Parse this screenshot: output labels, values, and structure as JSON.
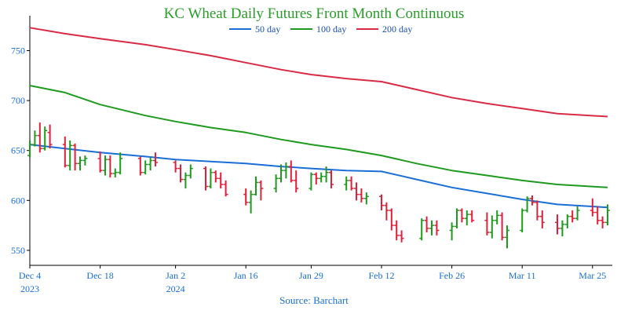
{
  "chart_data": {
    "type": "line",
    "title": "KC Wheat Daily Futures Front Month Continuous",
    "source": "Source: Barchart",
    "ylim": [
      535,
      785
    ],
    "y_ticks": [
      550,
      600,
      650,
      700,
      750
    ],
    "grid": false,
    "legend_position": "top",
    "x_ticks": [
      {
        "date": "2023-12-04",
        "label": "Dec 4",
        "sub": "2023"
      },
      {
        "date": "2023-12-18",
        "label": "Dec 18",
        "sub": ""
      },
      {
        "date": "2024-01-02",
        "label": "Jan 2",
        "sub": "2024"
      },
      {
        "date": "2024-01-16",
        "label": "Jan 16",
        "sub": ""
      },
      {
        "date": "2024-01-29",
        "label": "Jan 29",
        "sub": ""
      },
      {
        "date": "2024-02-12",
        "label": "Feb 12",
        "sub": ""
      },
      {
        "date": "2024-02-26",
        "label": "Feb 26",
        "sub": ""
      },
      {
        "date": "2024-03-11",
        "label": "Mar 11",
        "sub": ""
      },
      {
        "date": "2024-03-25",
        "label": "Mar 25",
        "sub": ""
      }
    ],
    "xlim": [
      "2023-12-04",
      "2024-03-28"
    ],
    "series": [
      {
        "name": "50 day",
        "color": "#1a6fd6",
        "points": [
          [
            "2023-12-04",
            656
          ],
          [
            "2023-12-11",
            652
          ],
          [
            "2023-12-18",
            648
          ],
          [
            "2023-12-27",
            644
          ],
          [
            "2024-01-02",
            641
          ],
          [
            "2024-01-09",
            639
          ],
          [
            "2024-01-16",
            637
          ],
          [
            "2024-01-23",
            634
          ],
          [
            "2024-01-29",
            632
          ],
          [
            "2024-02-05",
            630
          ],
          [
            "2024-02-12",
            629
          ],
          [
            "2024-02-19",
            621
          ],
          [
            "2024-02-26",
            613
          ],
          [
            "2024-03-04",
            607
          ],
          [
            "2024-03-11",
            601
          ],
          [
            "2024-03-18",
            596
          ],
          [
            "2024-03-28",
            593
          ]
        ]
      },
      {
        "name": "100 day",
        "color": "#1f9a1f",
        "points": [
          [
            "2023-12-04",
            715
          ],
          [
            "2023-12-11",
            708
          ],
          [
            "2023-12-18",
            696
          ],
          [
            "2023-12-27",
            685
          ],
          [
            "2024-01-02",
            679
          ],
          [
            "2024-01-09",
            673
          ],
          [
            "2024-01-16",
            668
          ],
          [
            "2024-01-23",
            661
          ],
          [
            "2024-01-29",
            656
          ],
          [
            "2024-02-05",
            651
          ],
          [
            "2024-02-12",
            645
          ],
          [
            "2024-02-19",
            637
          ],
          [
            "2024-02-26",
            630
          ],
          [
            "2024-03-04",
            625
          ],
          [
            "2024-03-11",
            620
          ],
          [
            "2024-03-18",
            616
          ],
          [
            "2024-03-28",
            613
          ]
        ]
      },
      {
        "name": "200 day",
        "color": "#d92b45",
        "points": [
          [
            "2023-12-04",
            773
          ],
          [
            "2023-12-11",
            767
          ],
          [
            "2023-12-18",
            762
          ],
          [
            "2023-12-27",
            756
          ],
          [
            "2024-01-02",
            751
          ],
          [
            "2024-01-09",
            745
          ],
          [
            "2024-01-16",
            738
          ],
          [
            "2024-01-23",
            731
          ],
          [
            "2024-01-29",
            726
          ],
          [
            "2024-02-05",
            722
          ],
          [
            "2024-02-12",
            719
          ],
          [
            "2024-02-19",
            711
          ],
          [
            "2024-02-26",
            703
          ],
          [
            "2024-03-04",
            697
          ],
          [
            "2024-03-11",
            692
          ],
          [
            "2024-03-18",
            687
          ],
          [
            "2024-03-28",
            684
          ]
        ]
      }
    ],
    "ohlc": {
      "up_color": "#1f9a1f",
      "down_color": "#e0203a",
      "bars": [
        [
          "2023-12-04",
          645,
          660,
          643,
          656
        ],
        [
          "2023-12-05",
          656,
          670,
          654,
          665
        ],
        [
          "2023-12-06",
          665,
          678,
          648,
          652
        ],
        [
          "2023-12-07",
          652,
          674,
          650,
          670
        ],
        [
          "2023-12-08",
          668,
          676,
          652,
          656
        ],
        [
          "2023-12-11",
          656,
          664,
          633,
          635
        ],
        [
          "2023-12-12",
          635,
          660,
          630,
          655
        ],
        [
          "2023-12-13",
          655,
          657,
          630,
          637
        ],
        [
          "2023-12-14",
          637,
          644,
          630,
          640
        ],
        [
          "2023-12-15",
          640,
          645,
          635,
          642
        ],
        [
          "2023-12-18",
          642,
          649,
          628,
          630
        ],
        [
          "2023-12-19",
          630,
          645,
          625,
          641
        ],
        [
          "2023-12-20",
          641,
          645,
          623,
          627
        ],
        [
          "2023-12-21",
          627,
          632,
          623,
          628
        ],
        [
          "2023-12-22",
          628,
          648,
          626,
          642
        ],
        [
          "2023-12-26",
          642,
          644,
          625,
          628
        ],
        [
          "2023-12-27",
          628,
          640,
          626,
          636
        ],
        [
          "2023-12-28",
          636,
          643,
          630,
          640
        ],
        [
          "2023-12-29",
          640,
          648,
          634,
          638
        ],
        [
          "2024-01-02",
          638,
          640,
          628,
          632
        ],
        [
          "2024-01-03",
          632,
          636,
          618,
          621
        ],
        [
          "2024-01-04",
          621,
          628,
          612,
          625
        ],
        [
          "2024-01-05",
          625,
          636,
          622,
          632
        ],
        [
          "2024-01-08",
          632,
          634,
          610,
          614
        ],
        [
          "2024-01-09",
          614,
          632,
          612,
          628
        ],
        [
          "2024-01-10",
          628,
          630,
          618,
          622
        ],
        [
          "2024-01-11",
          622,
          628,
          612,
          616
        ],
        [
          "2024-01-12",
          616,
          620,
          604,
          606
        ],
        [
          "2024-01-16",
          606,
          612,
          595,
          598
        ],
        [
          "2024-01-17",
          598,
          610,
          587,
          606
        ],
        [
          "2024-01-18",
          606,
          624,
          605,
          618
        ],
        [
          "2024-01-19",
          618,
          620,
          600,
          612
        ],
        [
          "2024-01-22",
          612,
          626,
          608,
          622
        ],
        [
          "2024-01-23",
          622,
          636,
          618,
          630
        ],
        [
          "2024-01-24",
          630,
          638,
          622,
          634
        ],
        [
          "2024-01-25",
          634,
          640,
          618,
          620
        ],
        [
          "2024-01-26",
          620,
          630,
          608,
          612
        ],
        [
          "2024-01-29",
          612,
          628,
          610,
          626
        ],
        [
          "2024-01-30",
          626,
          628,
          616,
          622
        ],
        [
          "2024-01-31",
          622,
          628,
          618,
          624
        ],
        [
          "2024-02-01",
          624,
          634,
          618,
          628
        ],
        [
          "2024-02-02",
          628,
          630,
          612,
          616
        ],
        [
          "2024-02-05",
          616,
          624,
          610,
          620
        ],
        [
          "2024-02-06",
          620,
          624,
          610,
          612
        ],
        [
          "2024-02-07",
          612,
          618,
          600,
          606
        ],
        [
          "2024-02-08",
          606,
          612,
          598,
          602
        ],
        [
          "2024-02-09",
          602,
          608,
          596,
          604
        ],
        [
          "2024-02-12",
          604,
          606,
          590,
          595
        ],
        [
          "2024-02-13",
          595,
          598,
          580,
          590
        ],
        [
          "2024-02-14",
          590,
          592,
          570,
          575
        ],
        [
          "2024-02-15",
          575,
          580,
          560,
          565
        ],
        [
          "2024-02-16",
          565,
          570,
          558,
          562
        ],
        [
          "2024-02-20",
          562,
          582,
          560,
          580
        ],
        [
          "2024-02-21",
          580,
          584,
          568,
          572
        ],
        [
          "2024-02-22",
          572,
          580,
          565,
          575
        ],
        [
          "2024-02-23",
          575,
          580,
          565,
          570
        ],
        [
          "2024-02-26",
          570,
          578,
          560,
          574
        ],
        [
          "2024-02-27",
          574,
          592,
          572,
          590
        ],
        [
          "2024-02-28",
          590,
          592,
          578,
          582
        ],
        [
          "2024-02-29",
          582,
          590,
          575,
          586
        ],
        [
          "2024-03-01",
          586,
          590,
          578,
          580
        ],
        [
          "2024-03-04",
          580,
          588,
          565,
          568
        ],
        [
          "2024-03-05",
          568,
          585,
          562,
          580
        ],
        [
          "2024-03-06",
          580,
          590,
          576,
          585
        ],
        [
          "2024-03-07",
          585,
          588,
          560,
          563
        ],
        [
          "2024-03-08",
          563,
          575,
          552,
          570
        ],
        [
          "2024-03-11",
          570,
          592,
          568,
          590
        ],
        [
          "2024-03-12",
          590,
          604,
          588,
          602
        ],
        [
          "2024-03-13",
          602,
          605,
          595,
          598
        ],
        [
          "2024-03-14",
          598,
          600,
          580,
          584
        ],
        [
          "2024-03-15",
          584,
          590,
          572,
          578
        ],
        [
          "2024-03-18",
          578,
          586,
          566,
          572
        ],
        [
          "2024-03-19",
          572,
          580,
          564,
          576
        ],
        [
          "2024-03-20",
          576,
          586,
          572,
          584
        ],
        [
          "2024-03-21",
          584,
          590,
          578,
          582
        ],
        [
          "2024-03-22",
          582,
          594,
          580,
          590
        ],
        [
          "2024-03-25",
          590,
          602,
          584,
          588
        ],
        [
          "2024-03-26",
          588,
          594,
          576,
          580
        ],
        [
          "2024-03-27",
          580,
          584,
          572,
          578
        ],
        [
          "2024-03-28",
          578,
          596,
          575,
          590
        ]
      ]
    }
  }
}
